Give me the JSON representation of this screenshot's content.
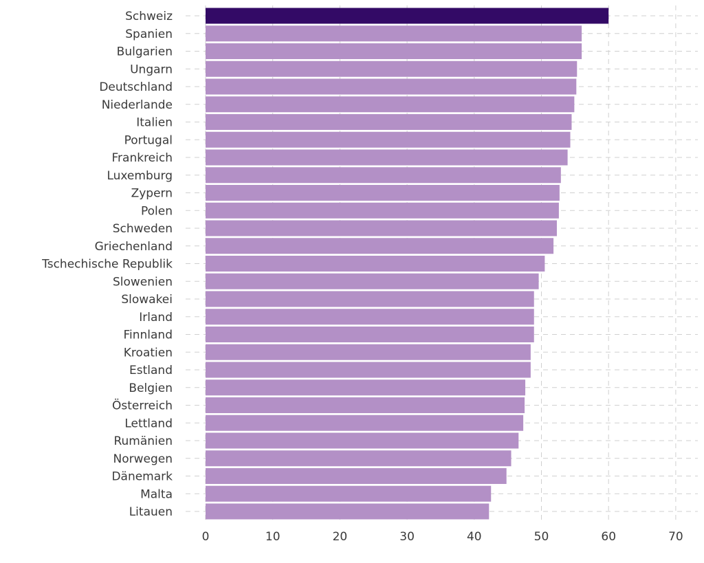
{
  "colors": {
    "highlight": "#330a66",
    "bar": "#b390c6",
    "grid": "#cfcfcf",
    "text": "#3a3a3a"
  },
  "chart_data": {
    "type": "bar",
    "orientation": "horizontal",
    "title": "",
    "xlabel": "",
    "ylabel": "",
    "xlim": [
      0,
      70
    ],
    "x_ticks": [
      0,
      10,
      20,
      30,
      40,
      50,
      60,
      70
    ],
    "grid": true,
    "highlight_category": "Schweiz",
    "categories": [
      "Schweiz",
      "Spanien",
      "Bulgarien",
      "Ungarn",
      "Deutschland",
      "Niederlande",
      "Italien",
      "Portugal",
      "Frankreich",
      "Luxemburg",
      "Zypern",
      "Polen",
      "Schweden",
      "Griechenland",
      "Tschechische Republik",
      "Slowenien",
      "Slowakei",
      "Irland",
      "Finnland",
      "Kroatien",
      "Estland",
      "Belgien",
      "Österreich",
      "Lettland",
      "Rumänien",
      "Norwegen",
      "Dänemark",
      "Malta",
      "Litauen"
    ],
    "values": [
      60.0,
      56.0,
      56.0,
      55.3,
      55.2,
      54.9,
      54.5,
      54.3,
      53.9,
      52.9,
      52.7,
      52.6,
      52.3,
      51.8,
      50.5,
      49.6,
      48.9,
      48.9,
      48.9,
      48.4,
      48.4,
      47.6,
      47.5,
      47.3,
      46.6,
      45.5,
      44.8,
      42.5,
      42.2
    ]
  }
}
